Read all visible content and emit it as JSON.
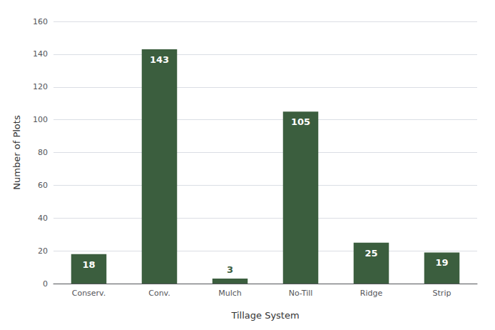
{
  "chart_data": {
    "type": "bar",
    "categories": [
      "Conserv.",
      "Conv.",
      "Mulch",
      "No-Till",
      "Ridge",
      "Strip"
    ],
    "values": [
      18,
      143,
      3,
      105,
      25,
      19
    ],
    "color": "#3b5e3e",
    "xlabel": "Tillage System",
    "ylabel": "Number of Plots",
    "ylim": [
      0,
      160
    ],
    "yticks": [
      0,
      20,
      40,
      60,
      80,
      100,
      120,
      140,
      160
    ],
    "grid": true,
    "data_labels": true
  }
}
